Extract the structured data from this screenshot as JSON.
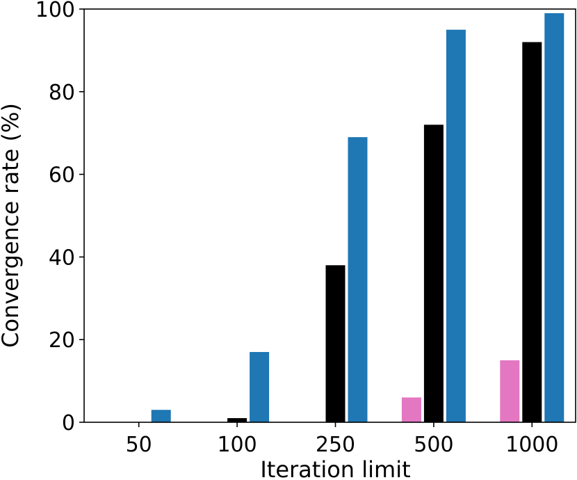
{
  "chart_data": {
    "type": "bar",
    "title": "",
    "xlabel": "Iteration limit",
    "ylabel": "Convergence rate (%)",
    "categories": [
      "50",
      "100",
      "250",
      "500",
      "1000"
    ],
    "ylim": [
      0,
      100
    ],
    "yticks": [
      0,
      20,
      40,
      60,
      80,
      100
    ],
    "grid": false,
    "legend": "none",
    "series": [
      {
        "color": "#e377c2",
        "values": [
          0,
          0,
          0,
          6,
          15
        ]
      },
      {
        "color": "#000000",
        "values": [
          0,
          1,
          38,
          72,
          92
        ]
      },
      {
        "color": "#1f77b4",
        "values": [
          3,
          17,
          69,
          95,
          99
        ]
      }
    ]
  }
}
